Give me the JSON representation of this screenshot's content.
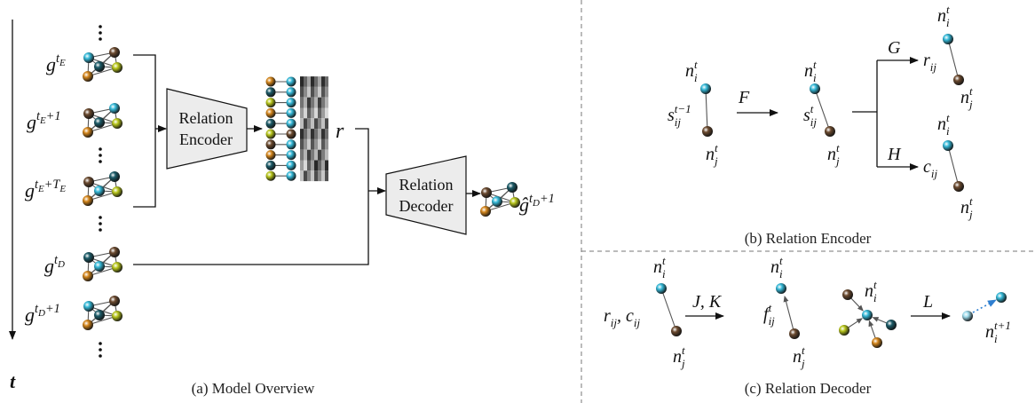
{
  "panel_a": {
    "caption": "(a) Model Overview",
    "time_axis": "t",
    "graph_labels": [
      [
        {
          "base": "g",
          "sup": [
            "t",
            "E"
          ]
        }
      ],
      [
        {
          "base": "g",
          "sup": [
            "t",
            "E",
            "+1"
          ]
        }
      ],
      [
        {
          "base": "g",
          "sup": [
            "t",
            "E",
            "+T",
            "E"
          ]
        }
      ],
      [
        {
          "base": "g",
          "sup": [
            "t",
            "D"
          ]
        }
      ],
      [
        {
          "base": "g",
          "sup": [
            "t",
            "D",
            "+1"
          ]
        }
      ]
    ],
    "encoder": [
      "Relation",
      "Encoder"
    ],
    "decoder": [
      "Relation",
      "Decoder"
    ],
    "embedding": [
      {
        "base": "r"
      }
    ],
    "output_label": [
      {
        "base": "ĝ",
        "sup": [
          "t",
          "D",
          "+1"
        ]
      }
    ]
  },
  "panel_b": {
    "caption": "(b) Relation Encoder",
    "labels": [
      [
        {
          "base": "n",
          "sub": [
            "i"
          ],
          "sup": [
            "t"
          ]
        }
      ],
      [
        {
          "base": "s",
          "sub": [
            "ij"
          ],
          "sup": [
            "t−1"
          ]
        }
      ],
      [
        {
          "base": "n",
          "sub": [
            "j"
          ],
          "sup": [
            "t"
          ]
        }
      ],
      [
        {
          "base": "F"
        }
      ],
      [
        {
          "base": "n",
          "sub": [
            "i"
          ],
          "sup": [
            "t"
          ]
        }
      ],
      [
        {
          "base": "s",
          "sub": [
            "ij"
          ],
          "sup": [
            "t"
          ]
        }
      ],
      [
        {
          "base": "n",
          "sub": [
            "j"
          ],
          "sup": [
            "t"
          ]
        }
      ],
      [
        {
          "base": "G"
        }
      ],
      [
        {
          "base": "H"
        }
      ],
      [
        {
          "base": "n",
          "sub": [
            "i"
          ],
          "sup": [
            "t"
          ]
        }
      ],
      [
        {
          "base": "r",
          "sub": [
            "ij"
          ]
        }
      ],
      [
        {
          "base": "n",
          "sub": [
            "j"
          ],
          "sup": [
            "t"
          ]
        }
      ],
      [
        {
          "base": "n",
          "sub": [
            "i"
          ],
          "sup": [
            "t"
          ]
        }
      ],
      [
        {
          "base": "c",
          "sub": [
            "ij"
          ]
        }
      ],
      [
        {
          "base": "n",
          "sub": [
            "j"
          ],
          "sup": [
            "t"
          ]
        }
      ]
    ]
  },
  "panel_c": {
    "caption": "(c) Relation Decoder",
    "labels": [
      [
        {
          "base": "r",
          "sub": [
            "ij"
          ]
        },
        {
          "base": ", c",
          "sub": [
            "ij"
          ]
        }
      ],
      [
        {
          "base": "n",
          "sub": [
            "i"
          ],
          "sup": [
            "t"
          ]
        }
      ],
      [
        {
          "base": "n",
          "sub": [
            "j"
          ],
          "sup": [
            "t"
          ]
        }
      ],
      [
        {
          "base": "J, K"
        }
      ],
      [
        {
          "base": "n",
          "sub": [
            "i"
          ],
          "sup": [
            "t"
          ]
        }
      ],
      [
        {
          "base": "f",
          "sub": [
            "ij"
          ],
          "sup": [
            "t"
          ]
        }
      ],
      [
        {
          "base": "n",
          "sub": [
            "j"
          ],
          "sup": [
            "t"
          ]
        }
      ],
      [
        {
          "base": "n",
          "sub": [
            "i"
          ],
          "sup": [
            "t"
          ]
        }
      ],
      [
        {
          "base": "L"
        }
      ],
      [
        {
          "base": "n",
          "sub": [
            "i"
          ],
          "sup": [
            "t+1"
          ]
        }
      ]
    ]
  }
}
